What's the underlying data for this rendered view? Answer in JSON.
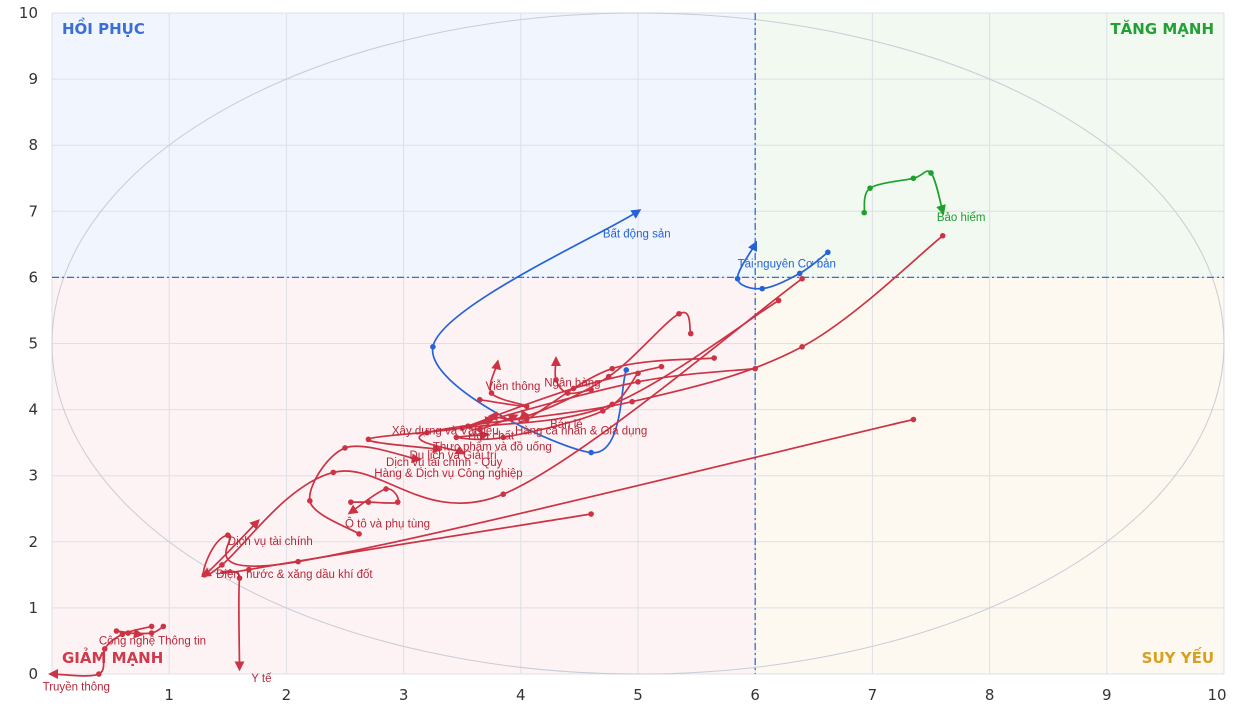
{
  "chart_data": {
    "type": "line",
    "title": "",
    "xlabel": "",
    "ylabel": "",
    "xlim": [
      0,
      10
    ],
    "ylim": [
      0,
      10
    ],
    "x_ticks": [
      "0",
      "1",
      "2",
      "3",
      "4",
      "5",
      "6",
      "7",
      "8",
      "9",
      "10"
    ],
    "y_ticks": [
      "0",
      "1",
      "2",
      "3",
      "4",
      "5",
      "6",
      "7",
      "8",
      "9",
      "10"
    ],
    "grid": true,
    "divider": {
      "x": 6,
      "y": 6
    },
    "quadrants": {
      "top_left": {
        "label": "HỒI PHỤC",
        "color": "#3b6fd8"
      },
      "top_right": {
        "label": "TĂNG MẠNH",
        "color": "#23a035"
      },
      "bottom_left": {
        "label": "GIẢM MẠNH",
        "color": "#cf3a4c"
      },
      "bottom_right": {
        "label": "SUY YẾU",
        "color": "#d6a020"
      }
    },
    "colors": {
      "blue": "#2563d6",
      "green": "#1fa02e",
      "red": "#cc3344",
      "divider": "#2f6fd6"
    },
    "series": [
      {
        "name": "Bất động sản",
        "color": "blue",
        "points": [
          [
            4.9,
            4.6
          ],
          [
            4.6,
            3.35
          ],
          [
            3.25,
            4.95
          ],
          [
            5.0,
            7.0
          ]
        ],
        "label_at": [
          4.7,
          6.6
        ]
      },
      {
        "name": "Tài nguyên Cơ bản",
        "color": "blue",
        "points": [
          [
            6.62,
            6.38
          ],
          [
            6.38,
            6.06
          ],
          [
            6.06,
            5.83
          ],
          [
            5.85,
            5.98
          ],
          [
            6.0,
            6.5
          ]
        ],
        "label_at": [
          5.85,
          6.15
        ]
      },
      {
        "name": "Bảo hiểm",
        "color": "green",
        "points": [
          [
            6.93,
            6.98
          ],
          [
            6.98,
            7.35
          ],
          [
            7.35,
            7.5
          ],
          [
            7.5,
            7.58
          ],
          [
            7.6,
            7.0
          ]
        ],
        "label_at": [
          7.55,
          6.85
        ]
      },
      {
        "name": "Truyền thông",
        "color": "red",
        "points": [
          [
            0.85,
            0.72
          ],
          [
            0.6,
            0.6
          ],
          [
            0.45,
            0.38
          ],
          [
            0.4,
            0.0
          ],
          [
            0.0,
            0.0
          ]
        ],
        "label_at": [
          -0.08,
          -0.25
        ]
      },
      {
        "name": "Công nghệ Thông tin",
        "color": "red",
        "points": [
          [
            0.95,
            0.72
          ],
          [
            0.85,
            0.62
          ],
          [
            0.65,
            0.62
          ],
          [
            0.55,
            0.65
          ],
          [
            0.75,
            0.6
          ]
        ],
        "label_at": [
          0.4,
          0.45
        ]
      },
      {
        "name": "Y tế",
        "color": "red",
        "points": [
          [
            4.6,
            2.42
          ],
          [
            1.68,
            1.58
          ],
          [
            1.6,
            1.45
          ],
          [
            1.6,
            0.1
          ]
        ],
        "label_at": [
          1.7,
          -0.12
        ]
      },
      {
        "name": "Điện, nước & xăng dầu khí đốt",
        "color": "red",
        "points": [
          [
            6.4,
            5.98
          ],
          [
            3.85,
            2.72
          ],
          [
            2.4,
            3.05
          ],
          [
            1.45,
            1.65
          ],
          [
            1.3,
            1.5
          ]
        ],
        "label_at": [
          1.4,
          1.45
        ]
      },
      {
        "name": "Dịch vụ tài chính",
        "color": "red",
        "points": [
          [
            7.35,
            3.85
          ],
          [
            2.1,
            1.7
          ],
          [
            1.5,
            2.1
          ],
          [
            1.3,
            1.5
          ],
          [
            1.75,
            2.3
          ]
        ],
        "label_at": [
          1.5,
          1.95
        ]
      },
      {
        "name": "Ô tô và phụ tùng",
        "color": "red",
        "points": [
          [
            2.55,
            2.6
          ],
          [
            2.7,
            2.6
          ],
          [
            2.95,
            2.6
          ],
          [
            2.85,
            2.8
          ],
          [
            2.55,
            2.45
          ]
        ],
        "label_at": [
          2.5,
          2.22
        ]
      },
      {
        "name": "Dịch vụ tài chính - Quy",
        "color": "red",
        "points": [
          [
            2.62,
            2.12
          ],
          [
            2.2,
            2.62
          ],
          [
            2.5,
            3.42
          ],
          [
            3.12,
            3.25
          ]
        ],
        "label_at": [
          2.85,
          3.15
        ]
      },
      {
        "name": "Hàng & Dịch vụ Công nghiệp",
        "color": "red",
        "points": [
          [
            6.2,
            5.65
          ],
          [
            4.78,
            4.08
          ],
          [
            3.5,
            3.72
          ],
          [
            2.7,
            3.55
          ],
          [
            3.3,
            3.4
          ]
        ],
        "label_at": [
          2.75,
          2.98
        ]
      },
      {
        "name": "Du lịch và Giải trí",
        "color": "red",
        "points": [
          [
            7.6,
            6.63
          ],
          [
            6.4,
            4.95
          ],
          [
            4.95,
            4.12
          ],
          [
            3.2,
            3.65
          ],
          [
            3.5,
            3.35
          ]
        ],
        "label_at": [
          3.05,
          3.25
        ]
      },
      {
        "name": "Thực phẩm và đồ uống",
        "color": "red",
        "points": [
          [
            5.0,
            4.55
          ],
          [
            4.7,
            3.98
          ],
          [
            3.85,
            3.58
          ],
          [
            3.45,
            3.58
          ],
          [
            3.7,
            3.62
          ]
        ],
        "label_at": [
          3.25,
          3.38
        ]
      },
      {
        "name": "Xây dựng và Vật liệu",
        "color": "red",
        "points": [
          [
            5.2,
            4.65
          ],
          [
            4.45,
            4.32
          ],
          [
            3.55,
            3.75
          ],
          [
            3.75,
            3.85
          ]
        ],
        "label_at": [
          2.9,
          3.62
        ]
      },
      {
        "name": "Hóa chất",
        "color": "red",
        "points": [
          [
            6.0,
            4.62
          ],
          [
            5.0,
            4.42
          ],
          [
            3.7,
            3.82
          ],
          [
            3.65,
            3.7
          ],
          [
            3.95,
            3.9
          ]
        ],
        "label_at": [
          3.55,
          3.55
        ]
      },
      {
        "name": "Hàng cá nhân & Gia dụng",
        "color": "red",
        "points": [
          [
            5.65,
            4.78
          ],
          [
            4.78,
            4.62
          ],
          [
            4.05,
            3.85
          ],
          [
            4.02,
            3.95
          ]
        ],
        "label_at": [
          3.95,
          3.62
        ]
      },
      {
        "name": "Bán lẻ",
        "color": "red",
        "points": [
          [
            5.45,
            5.15
          ],
          [
            5.35,
            5.45
          ],
          [
            4.75,
            4.5
          ],
          [
            4.05,
            3.9
          ],
          [
            3.75,
            3.9
          ]
        ],
        "label_at": [
          4.25,
          3.72
        ]
      },
      {
        "name": "Viễn thông",
        "color": "red",
        "points": [
          [
            3.65,
            4.15
          ],
          [
            4.05,
            4.05
          ],
          [
            3.75,
            4.25
          ],
          [
            3.8,
            4.7
          ]
        ],
        "label_at": [
          3.7,
          4.3
        ]
      },
      {
        "name": "Ngân hàng",
        "color": "red",
        "points": [
          [
            4.6,
            4.3
          ],
          [
            4.4,
            4.25
          ],
          [
            4.3,
            4.45
          ],
          [
            4.3,
            4.75
          ]
        ],
        "label_at": [
          4.2,
          4.35
        ]
      }
    ]
  }
}
